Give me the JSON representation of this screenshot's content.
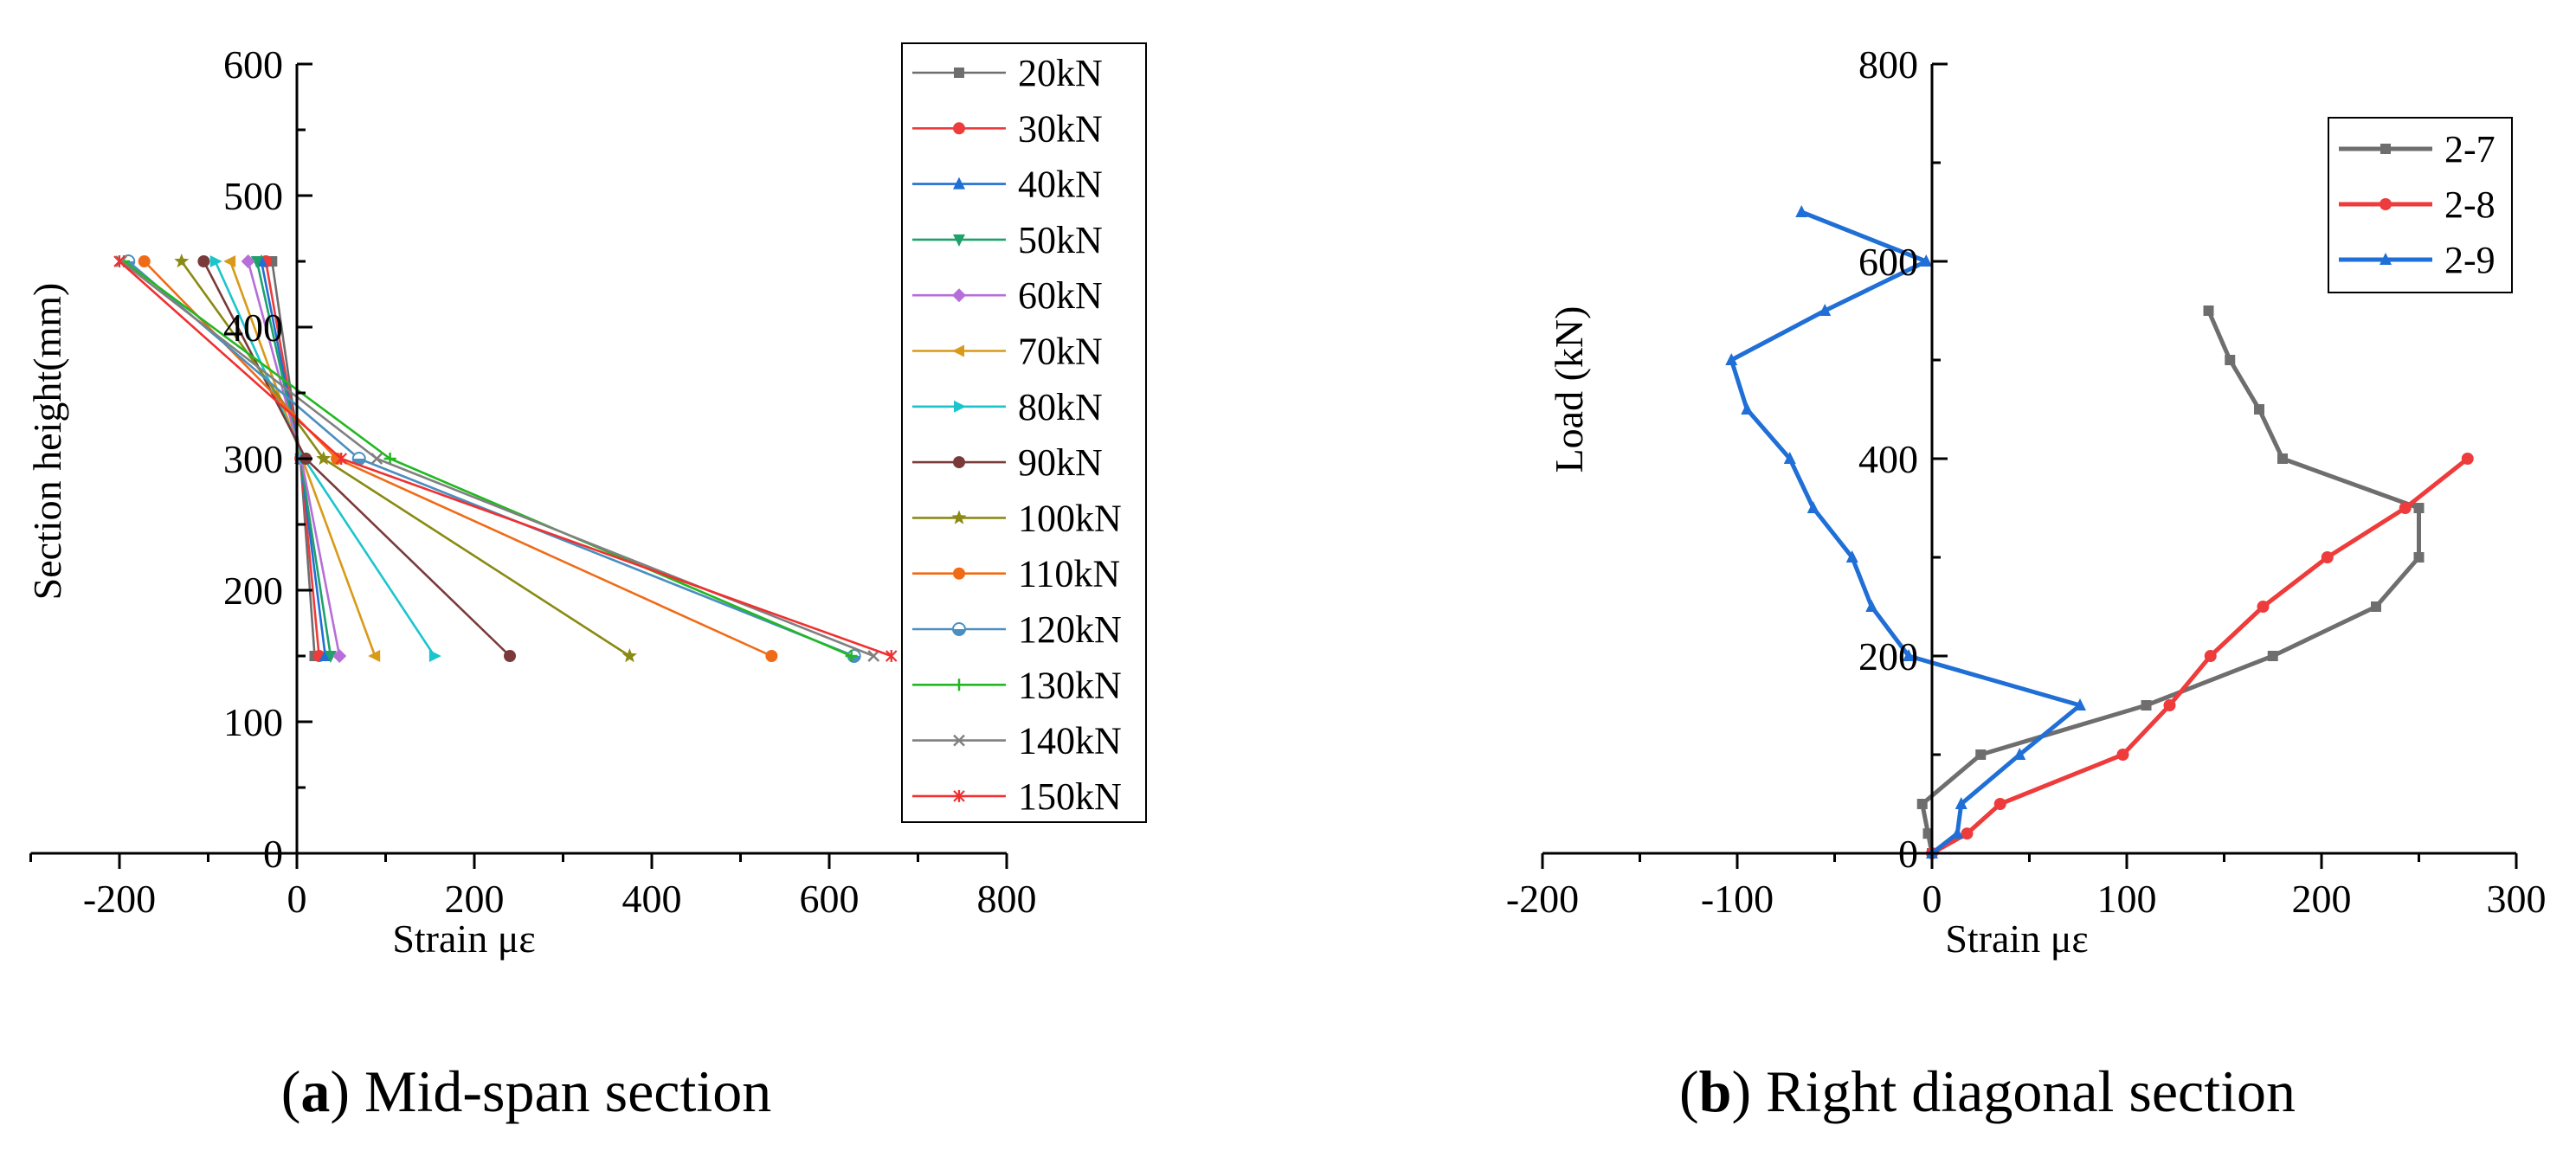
{
  "colors": {
    "axis": "#000000",
    "legend_border": "#000000",
    "background": "#ffffff"
  },
  "chart_data": [
    {
      "type": "line",
      "panel_label": "(a)",
      "panel_letter": "a",
      "caption": "Mid-span section",
      "xlabel": "Strain  με",
      "ylabel": "Section height(mm)",
      "xlim": [
        -300,
        800
      ],
      "ylim": [
        0,
        600
      ],
      "xticks": [
        -200,
        0,
        200,
        400,
        600,
        800
      ],
      "yticks": [
        0,
        100,
        200,
        300,
        400,
        500,
        600
      ],
      "legend_position": "top-right",
      "y": [
        150,
        300,
        450
      ],
      "series": [
        {
          "name": "20kN",
          "color": "#6e6e6e",
          "marker": "square",
          "x": [
            20,
            4,
            -28
          ]
        },
        {
          "name": "30kN",
          "color": "#ee3b3b",
          "marker": "circle",
          "x": [
            25,
            4,
            -35
          ]
        },
        {
          "name": "40kN",
          "color": "#1f6fd6",
          "marker": "triangle-up",
          "x": [
            32,
            4,
            -40
          ]
        },
        {
          "name": "50kN",
          "color": "#1fa16a",
          "marker": "triangle-down",
          "x": [
            38,
            4,
            -45
          ]
        },
        {
          "name": "60kN",
          "color": "#b76ed8",
          "marker": "diamond",
          "x": [
            48,
            5,
            -55
          ]
        },
        {
          "name": "70kN",
          "color": "#d89a18",
          "marker": "triangle-left",
          "x": [
            88,
            6,
            -75
          ]
        },
        {
          "name": "80kN",
          "color": "#1cc5cc",
          "marker": "triangle-right",
          "x": [
            155,
            8,
            -92
          ]
        },
        {
          "name": "90kN",
          "color": "#7a3a3a",
          "marker": "circle",
          "x": [
            240,
            10,
            -105
          ]
        },
        {
          "name": "100kN",
          "color": "#8a8a14",
          "marker": "star",
          "x": [
            375,
            30,
            -130
          ]
        },
        {
          "name": "110kN",
          "color": "#f06b16",
          "marker": "circle",
          "x": [
            535,
            45,
            -172
          ]
        },
        {
          "name": "120kN",
          "color": "#4a8fc0",
          "marker": "half-circle",
          "x": [
            628,
            70,
            -190
          ]
        },
        {
          "name": "130kN",
          "color": "#22b822",
          "marker": "plus",
          "x": [
            625,
            105,
            -195
          ]
        },
        {
          "name": "140kN",
          "color": "#808080",
          "marker": "x",
          "x": [
            650,
            90,
            -198
          ]
        },
        {
          "name": "150kN",
          "color": "#f03030",
          "marker": "asterisk",
          "x": [
            670,
            50,
            -200
          ]
        }
      ]
    },
    {
      "type": "line",
      "panel_label": "(b)",
      "panel_letter": "b",
      "caption": "Right diagonal section",
      "xlabel": "Strain  με",
      "ylabel": "Load (kN)",
      "xlim": [
        -200,
        300
      ],
      "ylim": [
        0,
        800
      ],
      "xticks": [
        -200,
        -100,
        0,
        100,
        200,
        300
      ],
      "yticks": [
        0,
        200,
        400,
        600,
        800
      ],
      "legend_position": "top-right",
      "series": [
        {
          "name": "2-7",
          "color": "#6e6e6e",
          "marker": "square",
          "x": [
            0,
            -2,
            -5,
            25,
            110,
            175,
            228,
            250,
            250,
            180,
            168,
            153,
            142
          ],
          "y": [
            0,
            20,
            50,
            100,
            150,
            200,
            250,
            300,
            350,
            400,
            450,
            500,
            550
          ]
        },
        {
          "name": "2-8",
          "color": "#ee3b3b",
          "marker": "circle",
          "x": [
            0,
            18,
            35,
            98,
            122,
            143,
            170,
            203,
            243,
            275
          ],
          "y": [
            0,
            20,
            50,
            100,
            150,
            200,
            250,
            300,
            350,
            400
          ]
        },
        {
          "name": "2-9",
          "color": "#1f6fd6",
          "marker": "triangle-up",
          "x": [
            0,
            13,
            15,
            45,
            76,
            -12,
            -31,
            -41,
            -61,
            -73,
            -95,
            -103,
            -55,
            -3,
            -67
          ],
          "y": [
            0,
            20,
            50,
            100,
            150,
            200,
            250,
            300,
            350,
            400,
            450,
            500,
            550,
            600,
            650
          ]
        }
      ]
    }
  ]
}
